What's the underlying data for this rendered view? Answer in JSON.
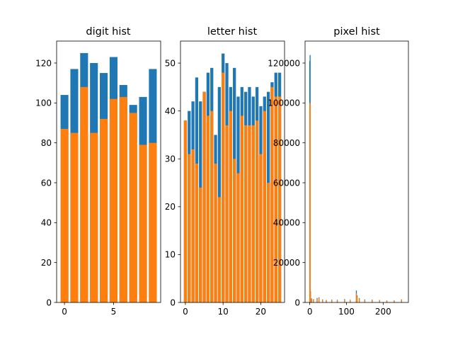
{
  "colors": {
    "series_a": "#1f77b4",
    "series_b": "#ff7f0e",
    "axis": "#000000",
    "background": "#ffffff"
  },
  "chart_data": [
    {
      "type": "bar",
      "title": "digit hist",
      "xlabel": "",
      "ylabel": "",
      "x": [
        0,
        1,
        2,
        3,
        4,
        5,
        6,
        7,
        8,
        9
      ],
      "xlim": [
        -0.8,
        9.8
      ],
      "ylim": [
        0,
        131
      ],
      "xticks": [
        0,
        5
      ],
      "yticks": [
        0,
        20,
        40,
        60,
        80,
        100,
        120
      ],
      "grid": false,
      "series": [
        {
          "values": [
            104,
            117,
            125,
            120,
            115,
            123,
            109,
            99,
            103,
            117
          ]
        },
        {
          "values": [
            87,
            85,
            108,
            85,
            92,
            102,
            103,
            95,
            79,
            80
          ]
        }
      ]
    },
    {
      "type": "bar",
      "title": "letter hist",
      "xlabel": "",
      "ylabel": "",
      "x": [
        0,
        1,
        2,
        3,
        4,
        5,
        6,
        7,
        8,
        9,
        10,
        11,
        12,
        13,
        14,
        15,
        16,
        17,
        18,
        19,
        20,
        21,
        22,
        23,
        24,
        25
      ],
      "xlim": [
        -1.3,
        26.3
      ],
      "ylim": [
        0,
        54.6
      ],
      "xticks": [
        0,
        10,
        20
      ],
      "yticks": [
        0,
        10,
        20,
        30,
        40,
        50
      ],
      "grid": false,
      "series": [
        {
          "values": [
            38,
            40,
            42,
            47,
            42,
            44,
            48,
            49,
            35,
            45,
            52,
            50,
            45,
            49,
            43,
            45,
            44,
            45,
            43,
            45,
            41,
            43,
            44,
            46,
            48,
            48
          ]
        },
        {
          "values": [
            38,
            31,
            32,
            29,
            24,
            44,
            39,
            40,
            29,
            22,
            48,
            37,
            40,
            30,
            27,
            39,
            37,
            37,
            37,
            38,
            31,
            40,
            25,
            45,
            43,
            43
          ]
        }
      ]
    },
    {
      "type": "bar",
      "title": "pixel hist",
      "xlabel": "",
      "ylabel": "",
      "xlim": [
        -12.8,
        268.8
      ],
      "ylim": [
        0,
        131000
      ],
      "xticks": [
        0,
        100,
        200
      ],
      "yticks": [
        0,
        20000,
        40000,
        60000,
        80000,
        100000,
        120000
      ],
      "grid": false,
      "bar_width": 2.6,
      "series": [
        {
          "points": [
            [
              0,
              121000
            ],
            [
              1,
              124000
            ],
            [
              2,
              5500
            ],
            [
              5,
              2000
            ],
            [
              10,
              1600
            ],
            [
              20,
              2200
            ],
            [
              25,
              2600
            ],
            [
              35,
              1500
            ],
            [
              45,
              1200
            ],
            [
              60,
              1400
            ],
            [
              75,
              1300
            ],
            [
              95,
              1700
            ],
            [
              110,
              1300
            ],
            [
              127,
              6000
            ],
            [
              129,
              3500
            ],
            [
              135,
              2200
            ],
            [
              150,
              1500
            ],
            [
              170,
              1400
            ],
            [
              190,
              1200
            ],
            [
              210,
              1000
            ],
            [
              230,
              1100
            ],
            [
              250,
              1500
            ]
          ]
        },
        {
          "points": [
            [
              0,
              100000
            ],
            [
              1,
              99500
            ],
            [
              2,
              5000
            ],
            [
              5,
              1800
            ],
            [
              10,
              1200
            ],
            [
              20,
              1800
            ],
            [
              25,
              2300
            ],
            [
              35,
              1200
            ],
            [
              45,
              1000
            ],
            [
              60,
              1200
            ],
            [
              75,
              1000
            ],
            [
              95,
              1500
            ],
            [
              110,
              1100
            ],
            [
              127,
              4500
            ],
            [
              129,
              3000
            ],
            [
              135,
              2000
            ],
            [
              150,
              1300
            ],
            [
              170,
              1200
            ],
            [
              190,
              1000
            ],
            [
              210,
              900
            ],
            [
              230,
              1000
            ],
            [
              250,
              1300
            ]
          ]
        }
      ]
    }
  ]
}
